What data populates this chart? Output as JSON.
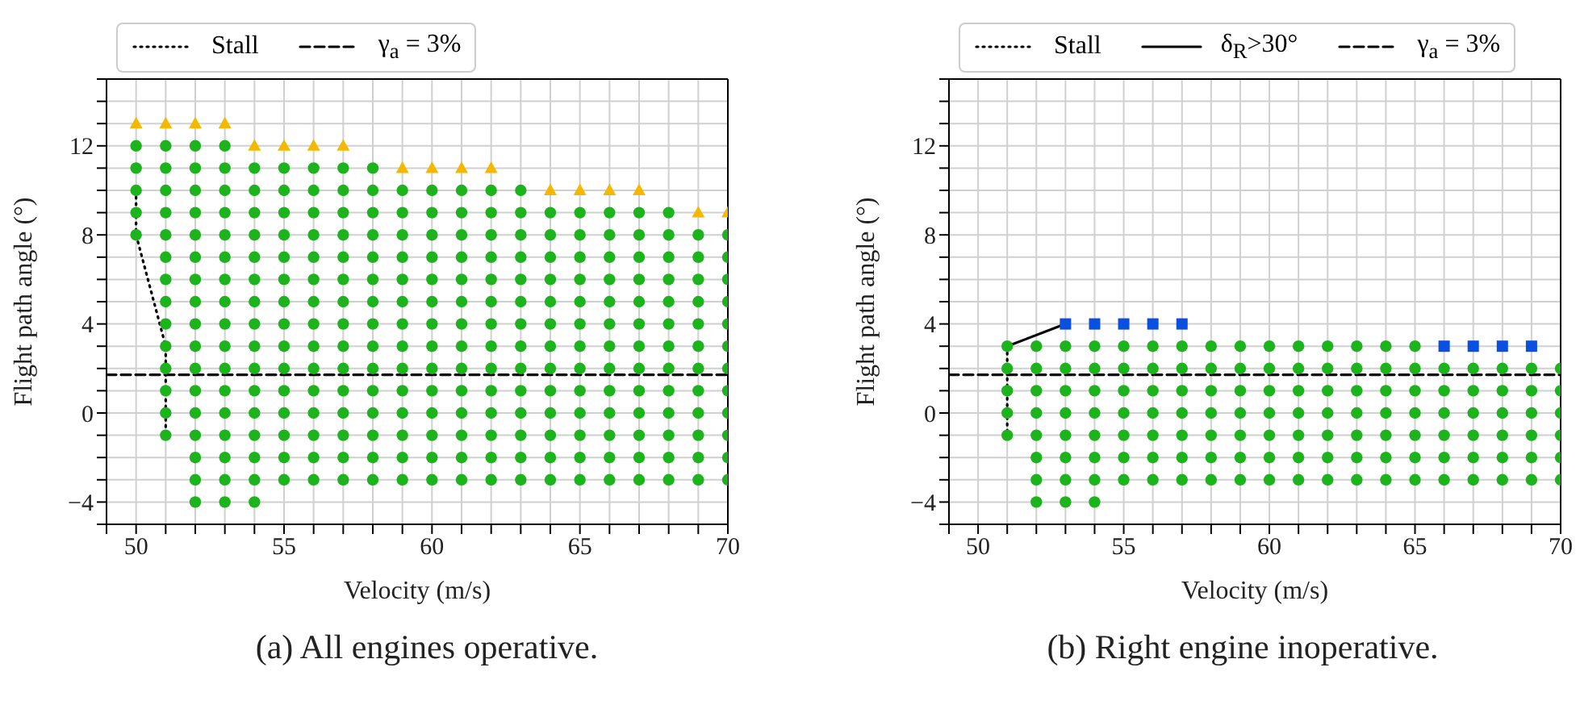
{
  "chart_data": [
    {
      "type": "scatter",
      "xlabel": "Velocity (m/s)",
      "ylabel": "Flight path angle (°)",
      "xlim": [
        49,
        70
      ],
      "ylim": [
        -5,
        15
      ],
      "xticks": [
        {
          "value": 49,
          "label": null
        },
        50,
        {
          "value": 51,
          "label": null
        },
        {
          "value": 52,
          "label": null
        },
        {
          "value": 53,
          "label": null
        },
        {
          "value": 54,
          "label": null
        },
        55,
        {
          "value": 56,
          "label": null
        },
        {
          "value": 57,
          "label": null
        },
        {
          "value": 58,
          "label": null
        },
        {
          "value": 59,
          "label": null
        },
        60,
        {
          "value": 61,
          "label": null
        },
        {
          "value": 62,
          "label": null
        },
        {
          "value": 63,
          "label": null
        },
        {
          "value": 64,
          "label": null
        },
        65,
        {
          "value": 66,
          "label": null
        },
        {
          "value": 67,
          "label": null
        },
        {
          "value": 68,
          "label": null
        },
        {
          "value": 69,
          "label": null
        },
        70
      ],
      "yticks": [
        {
          "value": -5,
          "label": null
        },
        -4,
        {
          "value": -3,
          "label": null
        },
        {
          "value": -2,
          "label": null
        },
        {
          "value": -1,
          "label": null
        },
        0,
        {
          "value": 1,
          "label": null
        },
        {
          "value": 2,
          "label": null
        },
        {
          "value": 3,
          "label": null
        },
        4,
        {
          "value": 5,
          "label": null
        },
        {
          "value": 6,
          "label": null
        },
        {
          "value": 7,
          "label": null
        },
        8,
        {
          "value": 9,
          "label": null
        },
        {
          "value": 10,
          "label": null
        },
        {
          "value": 11,
          "label": null
        },
        12,
        {
          "value": 13,
          "label": null
        },
        {
          "value": 14,
          "label": null
        },
        {
          "value": 15,
          "label": null
        }
      ],
      "grid": true,
      "legend": "top",
      "series": [
        {
          "type": "scatter",
          "color": "#1db31d",
          "marker": "circle",
          "x": [
            50,
            50,
            50,
            50,
            50,
            51,
            51,
            51,
            51,
            51,
            51,
            51,
            51,
            51,
            51,
            51,
            51,
            51,
            51,
            52,
            52,
            52,
            52,
            52,
            52,
            52,
            52,
            52,
            52,
            52,
            52,
            52,
            52,
            52,
            52,
            52,
            53,
            53,
            53,
            53,
            53,
            53,
            53,
            53,
            53,
            53,
            53,
            53,
            53,
            53,
            53,
            53,
            53,
            54,
            54,
            54,
            54,
            54,
            54,
            54,
            54,
            54,
            54,
            54,
            54,
            54,
            54,
            54,
            54,
            55,
            55,
            55,
            55,
            55,
            55,
            55,
            55,
            55,
            55,
            55,
            55,
            55,
            55,
            55,
            56,
            56,
            56,
            56,
            56,
            56,
            56,
            56,
            56,
            56,
            56,
            56,
            56,
            56,
            56,
            57,
            57,
            57,
            57,
            57,
            57,
            57,
            57,
            57,
            57,
            57,
            57,
            57,
            57,
            57,
            58,
            58,
            58,
            58,
            58,
            58,
            58,
            58,
            58,
            58,
            58,
            58,
            58,
            58,
            58,
            59,
            59,
            59,
            59,
            59,
            59,
            59,
            59,
            59,
            59,
            59,
            59,
            59,
            59,
            60,
            60,
            60,
            60,
            60,
            60,
            60,
            60,
            60,
            60,
            60,
            60,
            60,
            60,
            61,
            61,
            61,
            61,
            61,
            61,
            61,
            61,
            61,
            61,
            61,
            61,
            61,
            61,
            62,
            62,
            62,
            62,
            62,
            62,
            62,
            62,
            62,
            62,
            62,
            62,
            62,
            62,
            63,
            63,
            63,
            63,
            63,
            63,
            63,
            63,
            63,
            63,
            63,
            63,
            63,
            63,
            64,
            64,
            64,
            64,
            64,
            64,
            64,
            64,
            64,
            64,
            64,
            64,
            64,
            65,
            65,
            65,
            65,
            65,
            65,
            65,
            65,
            65,
            65,
            65,
            65,
            65,
            66,
            66,
            66,
            66,
            66,
            66,
            66,
            66,
            66,
            66,
            66,
            66,
            66,
            67,
            67,
            67,
            67,
            67,
            67,
            67,
            67,
            67,
            67,
            67,
            67,
            67,
            68,
            68,
            68,
            68,
            68,
            68,
            68,
            68,
            68,
            68,
            68,
            68,
            68,
            69,
            69,
            69,
            69,
            69,
            69,
            69,
            69,
            69,
            69,
            69,
            69,
            70,
            70,
            70,
            70,
            70,
            70,
            70,
            70,
            70,
            70,
            70,
            70
          ],
          "values": [
            8,
            9,
            10,
            11,
            12,
            -1,
            0,
            1,
            2,
            3,
            4,
            5,
            6,
            7,
            8,
            9,
            10,
            11,
            12,
            -4,
            -3,
            -2,
            -1,
            0,
            1,
            2,
            3,
            4,
            5,
            6,
            7,
            8,
            9,
            10,
            11,
            12,
            -4,
            -3,
            -2,
            -1,
            0,
            1,
            2,
            3,
            4,
            5,
            6,
            7,
            8,
            9,
            10,
            11,
            12,
            -4,
            -3,
            -2,
            -1,
            0,
            1,
            2,
            3,
            4,
            5,
            6,
            7,
            8,
            9,
            10,
            11,
            -3,
            -2,
            -1,
            0,
            1,
            2,
            3,
            4,
            5,
            6,
            7,
            8,
            9,
            10,
            11,
            -3,
            -2,
            -1,
            0,
            1,
            2,
            3,
            4,
            5,
            6,
            7,
            8,
            9,
            10,
            11,
            -3,
            -2,
            -1,
            0,
            1,
            2,
            3,
            4,
            5,
            6,
            7,
            8,
            9,
            10,
            11,
            -3,
            -2,
            -1,
            0,
            1,
            2,
            3,
            4,
            5,
            6,
            7,
            8,
            9,
            10,
            11,
            -3,
            -2,
            -1,
            0,
            1,
            2,
            3,
            4,
            5,
            6,
            7,
            8,
            9,
            10,
            -3,
            -2,
            -1,
            0,
            1,
            2,
            3,
            4,
            5,
            6,
            7,
            8,
            9,
            10,
            -3,
            -2,
            -1,
            0,
            1,
            2,
            3,
            4,
            5,
            6,
            7,
            8,
            9,
            10,
            -3,
            -2,
            -1,
            0,
            1,
            2,
            3,
            4,
            5,
            6,
            7,
            8,
            9,
            10,
            -3,
            -2,
            -1,
            0,
            1,
            2,
            3,
            4,
            5,
            6,
            7,
            8,
            9,
            10,
            -3,
            -2,
            -1,
            0,
            1,
            2,
            3,
            4,
            5,
            6,
            7,
            8,
            9,
            -3,
            -2,
            -1,
            0,
            1,
            2,
            3,
            4,
            5,
            6,
            7,
            8,
            9,
            -3,
            -2,
            -1,
            0,
            1,
            2,
            3,
            4,
            5,
            6,
            7,
            8,
            9,
            -3,
            -2,
            -1,
            0,
            1,
            2,
            3,
            4,
            5,
            6,
            7,
            8,
            9,
            -3,
            -2,
            -1,
            0,
            1,
            2,
            3,
            4,
            5,
            6,
            7,
            8,
            9,
            -3,
            -2,
            -1,
            0,
            1,
            2,
            3,
            4,
            5,
            6,
            7,
            8,
            -3,
            -2,
            -1,
            0,
            1,
            2,
            3,
            4,
            5,
            6,
            7,
            8
          ]
        },
        {
          "type": "scatter",
          "color": "#f5b800",
          "marker": "triangle",
          "x": [
            50,
            51,
            52,
            53,
            54,
            55,
            56,
            57,
            59,
            60,
            61,
            62,
            64,
            65,
            66,
            67,
            69,
            70
          ],
          "values": [
            13,
            13,
            13,
            13,
            12,
            12,
            12,
            12,
            11,
            11,
            11,
            11,
            10,
            10,
            10,
            10,
            9,
            9
          ]
        },
        {
          "type": "line",
          "name": "Stall",
          "color": "#000000",
          "marker": "none",
          "line_style": "dotted",
          "x": [
            50,
            50,
            51,
            51
          ],
          "values": [
            10,
            8,
            3,
            -1
          ]
        },
        {
          "type": "line",
          "name": "γ$_{a}$ = 3%",
          "color": "#000000",
          "marker": "none",
          "line_style": "dashed",
          "x": [
            49,
            70
          ],
          "values": [
            1.72,
            1.72
          ]
        }
      ],
      "annotations": [
        "(a) All engines operative."
      ]
    },
    {
      "type": "scatter",
      "xlabel": "Velocity (m/s)",
      "ylabel": "Flight path angle (°)",
      "xlim": [
        49,
        70
      ],
      "ylim": [
        -5,
        15
      ],
      "xticks": [
        {
          "value": 49,
          "label": null
        },
        50,
        {
          "value": 51,
          "label": null
        },
        {
          "value": 52,
          "label": null
        },
        {
          "value": 53,
          "label": null
        },
        {
          "value": 54,
          "label": null
        },
        55,
        {
          "value": 56,
          "label": null
        },
        {
          "value": 57,
          "label": null
        },
        {
          "value": 58,
          "label": null
        },
        {
          "value": 59,
          "label": null
        },
        60,
        {
          "value": 61,
          "label": null
        },
        {
          "value": 62,
          "label": null
        },
        {
          "value": 63,
          "label": null
        },
        {
          "value": 64,
          "label": null
        },
        65,
        {
          "value": 66,
          "label": null
        },
        {
          "value": 67,
          "label": null
        },
        {
          "value": 68,
          "label": null
        },
        {
          "value": 69,
          "label": null
        },
        70
      ],
      "yticks": [
        {
          "value": -5,
          "label": null
        },
        -4,
        {
          "value": -3,
          "label": null
        },
        {
          "value": -2,
          "label": null
        },
        {
          "value": -1,
          "label": null
        },
        0,
        {
          "value": 1,
          "label": null
        },
        {
          "value": 2,
          "label": null
        },
        {
          "value": 3,
          "label": null
        },
        4,
        {
          "value": 5,
          "label": null
        },
        {
          "value": 6,
          "label": null
        },
        {
          "value": 7,
          "label": null
        },
        8,
        {
          "value": 9,
          "label": null
        },
        {
          "value": 10,
          "label": null
        },
        {
          "value": 11,
          "label": null
        },
        12,
        {
          "value": 13,
          "label": null
        },
        {
          "value": 14,
          "label": null
        },
        {
          "value": 15,
          "label": null
        }
      ],
      "grid": true,
      "legend": "top",
      "series": [
        {
          "type": "scatter",
          "color": "#1db31d",
          "marker": "circle",
          "x": [
            51,
            51,
            51,
            51,
            51,
            52,
            52,
            52,
            52,
            52,
            52,
            52,
            52,
            53,
            53,
            53,
            53,
            53,
            53,
            53,
            53,
            54,
            54,
            54,
            54,
            54,
            54,
            54,
            54,
            55,
            55,
            55,
            55,
            55,
            55,
            55,
            56,
            56,
            56,
            56,
            56,
            56,
            56,
            57,
            57,
            57,
            57,
            57,
            57,
            57,
            58,
            58,
            58,
            58,
            58,
            58,
            58,
            59,
            59,
            59,
            59,
            59,
            59,
            59,
            60,
            60,
            60,
            60,
            60,
            60,
            60,
            61,
            61,
            61,
            61,
            61,
            61,
            61,
            62,
            62,
            62,
            62,
            62,
            62,
            62,
            63,
            63,
            63,
            63,
            63,
            63,
            63,
            64,
            64,
            64,
            64,
            64,
            64,
            64,
            65,
            65,
            65,
            65,
            65,
            65,
            65,
            66,
            66,
            66,
            66,
            66,
            66,
            67,
            67,
            67,
            67,
            67,
            67,
            68,
            68,
            68,
            68,
            68,
            68,
            69,
            69,
            69,
            69,
            69,
            69,
            70,
            70,
            70,
            70,
            70,
            70
          ],
          "values": [
            -1,
            0,
            1,
            2,
            3,
            -4,
            -3,
            -2,
            -1,
            0,
            1,
            2,
            3,
            -4,
            -3,
            -2,
            -1,
            0,
            1,
            2,
            3,
            -4,
            -3,
            -2,
            -1,
            0,
            1,
            2,
            3,
            -3,
            -2,
            -1,
            0,
            1,
            2,
            3,
            -3,
            -2,
            -1,
            0,
            1,
            2,
            3,
            -3,
            -2,
            -1,
            0,
            1,
            2,
            3,
            -3,
            -2,
            -1,
            0,
            1,
            2,
            3,
            -3,
            -2,
            -1,
            0,
            1,
            2,
            3,
            -3,
            -2,
            -1,
            0,
            1,
            2,
            3,
            -3,
            -2,
            -1,
            0,
            1,
            2,
            3,
            -3,
            -2,
            -1,
            0,
            1,
            2,
            3,
            -3,
            -2,
            -1,
            0,
            1,
            2,
            3,
            -3,
            -2,
            -1,
            0,
            1,
            2,
            3,
            -3,
            -2,
            -1,
            0,
            1,
            2,
            3,
            -3,
            -2,
            -1,
            0,
            1,
            2,
            -3,
            -2,
            -1,
            0,
            1,
            2,
            -3,
            -2,
            -1,
            0,
            1,
            2,
            -3,
            -2,
            -1,
            0,
            1,
            2,
            -3,
            -2,
            -1,
            0,
            1,
            2
          ]
        },
        {
          "type": "scatter",
          "color": "#0a4fe0",
          "marker": "square",
          "x": [
            53,
            54,
            55,
            56,
            57,
            66,
            67,
            68,
            69
          ],
          "values": [
            4,
            4,
            4,
            4,
            4,
            3,
            3,
            3,
            3
          ]
        },
        {
          "type": "line",
          "name": "Stall",
          "color": "#000000",
          "marker": "none",
          "line_style": "dotted",
          "x": [
            51,
            51
          ],
          "values": [
            3,
            -1
          ]
        },
        {
          "type": "line",
          "name": "δ$_{R}$>30°",
          "color": "#000000",
          "marker": "none",
          "line_style": "solid",
          "x": [
            51,
            53
          ],
          "values": [
            3,
            4
          ]
        },
        {
          "type": "line",
          "name": "γ$_{a}$ = 3%",
          "color": "#000000",
          "marker": "none",
          "line_style": "dashed",
          "x": [
            49,
            70
          ],
          "values": [
            1.72,
            1.72
          ]
        }
      ],
      "annotations": [
        "(b) Right engine inoperative."
      ]
    }
  ]
}
